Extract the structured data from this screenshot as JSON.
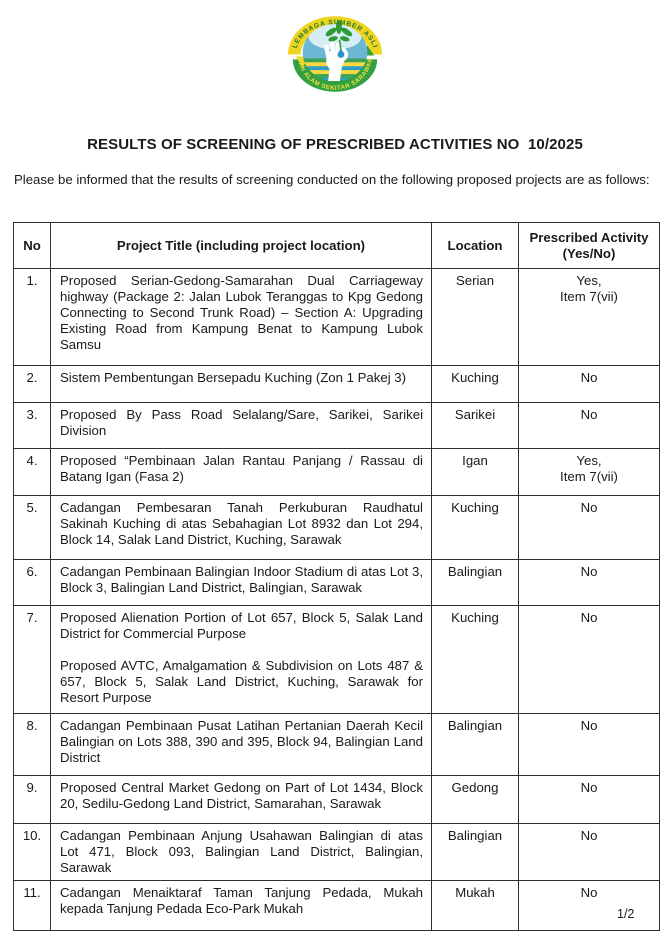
{
  "logo": {
    "organisation_top_text": "LEMBAGA SUMBER ASLI",
    "organisation_bottom_text": "DAN ALAM SEKITAR SARAWAK",
    "colors": {
      "band_yellow": "#F1D41F",
      "band_green": "#33A042",
      "inner_blue": "#6CB7D4",
      "inner_light": "#D6EDF5",
      "stripe_green": "#3FA455",
      "stripe_yellow": "#FFD93B",
      "stripe_blue": "#2E9EC4",
      "leaf_green": "#2E9937",
      "droplet_blue": "#2596CE",
      "text_green": "#1E7C2E",
      "text_yellow": "#F4E03C"
    }
  },
  "title": "RESULTS OF SCREENING OF PRESCRIBED ACTIVITIES NO  10/2025",
  "intro": "Please be informed that the results of screening conducted on the following proposed projects are as follows:",
  "table": {
    "headers": {
      "no": "No",
      "title": "Project Title (including project location)",
      "location": "Location",
      "prescribed": "Prescribed Activity (Yes/No)"
    },
    "rows": [
      {
        "no": "1.",
        "title_paragraphs": [
          "Proposed Serian-Gedong-Samarahan Dual Carriageway highway (Package 2: Jalan Lubok Teranggas to Kpg Gedong Connecting to Second Trunk Road) – Section A: Upgrading Existing Road from Kampung Benat to Kampung Lubok Samsu"
        ],
        "location": "Serian",
        "prescribed_lines": [
          "Yes,",
          "Item 7(vii)"
        ]
      },
      {
        "no": "2.",
        "title_paragraphs": [
          "Sistem Pembentungan Bersepadu Kuching (Zon 1 Pakej 3)"
        ],
        "location": "Kuching",
        "prescribed_lines": [
          "No"
        ]
      },
      {
        "no": "3.",
        "title_paragraphs": [
          "Proposed By Pass Road Selalang/Sare, Sarikei, Sarikei Division"
        ],
        "location": "Sarikei",
        "prescribed_lines": [
          "No"
        ]
      },
      {
        "no": "4.",
        "title_paragraphs": [
          "Proposed “Pembinaan Jalan Rantau Panjang / Rassau di Batang Igan (Fasa 2)"
        ],
        "location": "Igan",
        "prescribed_lines": [
          "Yes,",
          "Item 7(vii)"
        ]
      },
      {
        "no": "5.",
        "title_paragraphs": [
          "Cadangan Pembesaran Tanah Perkuburan Raudhatul Sakinah Kuching di atas Sebahagian Lot 8932 dan Lot 294, Block 14, Salak Land District, Kuching, Sarawak"
        ],
        "location": "Kuching",
        "prescribed_lines": [
          "No"
        ]
      },
      {
        "no": "6.",
        "title_paragraphs": [
          "Cadangan Pembinaan Balingian Indoor Stadium di atas Lot 3, Block 3, Balingian Land District, Balingian, Sarawak"
        ],
        "location": "Balingian",
        "prescribed_lines": [
          "No"
        ]
      },
      {
        "no": "7.",
        "title_paragraphs": [
          "Proposed Alienation Portion of Lot 657, Block 5, Salak Land District for Commercial Purpose",
          "Proposed AVTC, Amalgamation & Subdivision on Lots 487 & 657, Block 5, Salak Land District, Kuching, Sarawak for Resort Purpose"
        ],
        "location": "Kuching",
        "prescribed_lines": [
          "No"
        ]
      },
      {
        "no": "8.",
        "title_paragraphs": [
          "Cadangan Pembinaan Pusat Latihan Pertanian Daerah Kecil Balingian on Lots 388, 390 and 395, Block 94, Balingian Land District"
        ],
        "location": "Balingian",
        "prescribed_lines": [
          "No"
        ]
      },
      {
        "no": "9.",
        "title_paragraphs": [
          "Proposed Central Market Gedong on Part of Lot 1434, Block 20, Sedilu-Gedong Land District, Samarahan, Sarawak"
        ],
        "location": "Gedong",
        "prescribed_lines": [
          "No"
        ]
      },
      {
        "no": "10.",
        "title_paragraphs": [
          "Cadangan Pembinaan Anjung Usahawan Balingian di atas Lot 471, Block 093, Balingian Land District, Balingian, Sarawak"
        ],
        "location": "Balingian",
        "prescribed_lines": [
          "No"
        ]
      },
      {
        "no": "11.",
        "title_paragraphs": [
          "Cadangan Menaiktaraf Taman Tanjung Pedada, Mukah kepada Tanjung Pedada Eco-Park Mukah"
        ],
        "location": "Mukah",
        "prescribed_lines": [
          "No"
        ]
      }
    ]
  },
  "page_number": "1/2"
}
